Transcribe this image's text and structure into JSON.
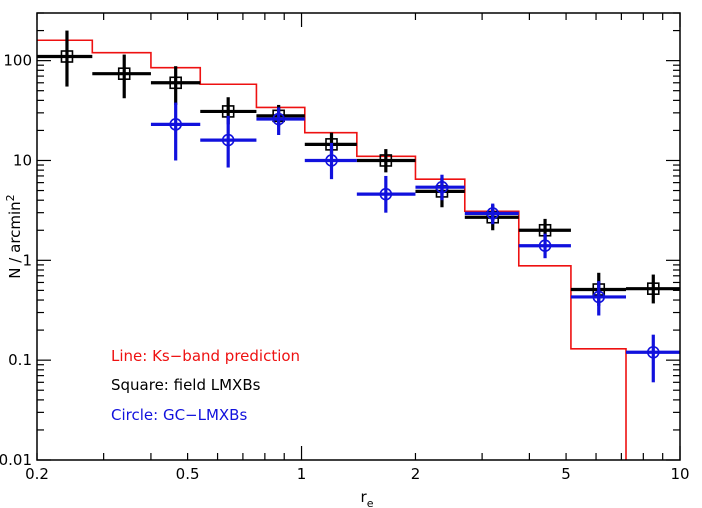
{
  "chart_data": {
    "type": "scatter",
    "xscale": "log",
    "yscale": "log",
    "xlim": [
      0.2,
      10
    ],
    "ylim": [
      0.01,
      300
    ],
    "xlabel": "r",
    "xlabel_sub": "e",
    "ylabel": "N / arcmin",
    "ylabel_sup": "2",
    "xticks": [
      {
        "value": 0.2,
        "label": "0.2"
      },
      {
        "value": 0.5,
        "label": "0.5"
      },
      {
        "value": 1,
        "label": "1"
      },
      {
        "value": 2,
        "label": "2"
      },
      {
        "value": 5,
        "label": "5"
      },
      {
        "value": 10,
        "label": "10"
      }
    ],
    "yticks": [
      {
        "value": 0.01,
        "label": "0.01"
      },
      {
        "value": 0.1,
        "label": "0.1"
      },
      {
        "value": 1,
        "label": "1"
      },
      {
        "value": 10,
        "label": "10"
      },
      {
        "value": 100,
        "label": "100"
      }
    ],
    "legend": [
      {
        "text": "Line: Ks−band prediction",
        "color": "#ee1111"
      },
      {
        "text": "Square: field LMXBs",
        "color": "#000000"
      },
      {
        "text": "Circle: GC−LMXBs",
        "color": "#1111dd"
      }
    ],
    "legend_position": "bottom-left",
    "step_series": {
      "color": "#ee1111",
      "edges": [
        0.2,
        0.28,
        0.4,
        0.54,
        0.76,
        1.02,
        1.4,
        2.0,
        2.7,
        3.75,
        5.15,
        7.2
      ],
      "values": [
        160,
        120,
        85,
        58,
        34,
        19,
        11,
        6.5,
        3.1,
        0.88,
        0.13,
        0.005
      ]
    },
    "series": [
      {
        "color": "#000000",
        "marker": "square",
        "points": [
          {
            "x": 0.24,
            "y": 110,
            "xlo": 0.2,
            "xhi": 0.28,
            "ylo": 55,
            "yhi": 200
          },
          {
            "x": 0.34,
            "y": 74,
            "xlo": 0.28,
            "xhi": 0.4,
            "ylo": 42,
            "yhi": 115
          },
          {
            "x": 0.465,
            "y": 60,
            "xlo": 0.4,
            "xhi": 0.54,
            "ylo": 36,
            "yhi": 88
          },
          {
            "x": 0.64,
            "y": 31,
            "xlo": 0.54,
            "xhi": 0.76,
            "ylo": 23,
            "yhi": 43
          },
          {
            "x": 0.87,
            "y": 28,
            "xlo": 0.76,
            "xhi": 1.02,
            "ylo": 22,
            "yhi": 36
          },
          {
            "x": 1.2,
            "y": 14.5,
            "xlo": 1.02,
            "xhi": 1.4,
            "ylo": 11,
            "yhi": 19
          },
          {
            "x": 1.67,
            "y": 10,
            "xlo": 1.4,
            "xhi": 2.0,
            "ylo": 7.6,
            "yhi": 13
          },
          {
            "x": 2.35,
            "y": 4.9,
            "xlo": 2.0,
            "xhi": 2.7,
            "ylo": 3.4,
            "yhi": 6.7
          },
          {
            "x": 3.2,
            "y": 2.7,
            "xlo": 2.7,
            "xhi": 3.75,
            "ylo": 2.0,
            "yhi": 3.6
          },
          {
            "x": 4.4,
            "y": 2.0,
            "xlo": 3.75,
            "xhi": 5.15,
            "ylo": 1.6,
            "yhi": 2.6
          },
          {
            "x": 6.1,
            "y": 0.51,
            "xlo": 5.15,
            "xhi": 7.2,
            "ylo": 0.35,
            "yhi": 0.75
          },
          {
            "x": 8.5,
            "y": 0.52,
            "xlo": 7.2,
            "xhi": 10,
            "ylo": 0.37,
            "yhi": 0.72
          }
        ]
      },
      {
        "color": "#1111dd",
        "marker": "circle",
        "points": [
          {
            "x": 0.465,
            "y": 23,
            "xlo": 0.4,
            "xhi": 0.54,
            "ylo": 10,
            "yhi": 38
          },
          {
            "x": 0.64,
            "y": 16,
            "xlo": 0.54,
            "xhi": 0.76,
            "ylo": 8.5,
            "yhi": 28
          },
          {
            "x": 0.87,
            "y": 26,
            "xlo": 0.76,
            "xhi": 1.02,
            "ylo": 18,
            "yhi": 34
          },
          {
            "x": 1.2,
            "y": 10,
            "xlo": 1.02,
            "xhi": 1.4,
            "ylo": 6.5,
            "yhi": 15
          },
          {
            "x": 1.67,
            "y": 4.6,
            "xlo": 1.4,
            "xhi": 2.0,
            "ylo": 3.0,
            "yhi": 7.0
          },
          {
            "x": 2.35,
            "y": 5.4,
            "xlo": 2.0,
            "xhi": 2.7,
            "ylo": 4.0,
            "yhi": 7.2
          },
          {
            "x": 3.2,
            "y": 2.95,
            "xlo": 2.7,
            "xhi": 3.75,
            "ylo": 2.3,
            "yhi": 3.7
          },
          {
            "x": 4.4,
            "y": 1.4,
            "xlo": 3.75,
            "xhi": 5.15,
            "ylo": 1.05,
            "yhi": 1.85
          },
          {
            "x": 6.1,
            "y": 0.43,
            "xlo": 5.15,
            "xhi": 7.2,
            "ylo": 0.28,
            "yhi": 0.62
          },
          {
            "x": 8.5,
            "y": 0.12,
            "xlo": 7.2,
            "xhi": 10,
            "ylo": 0.06,
            "yhi": 0.18
          }
        ]
      }
    ]
  }
}
